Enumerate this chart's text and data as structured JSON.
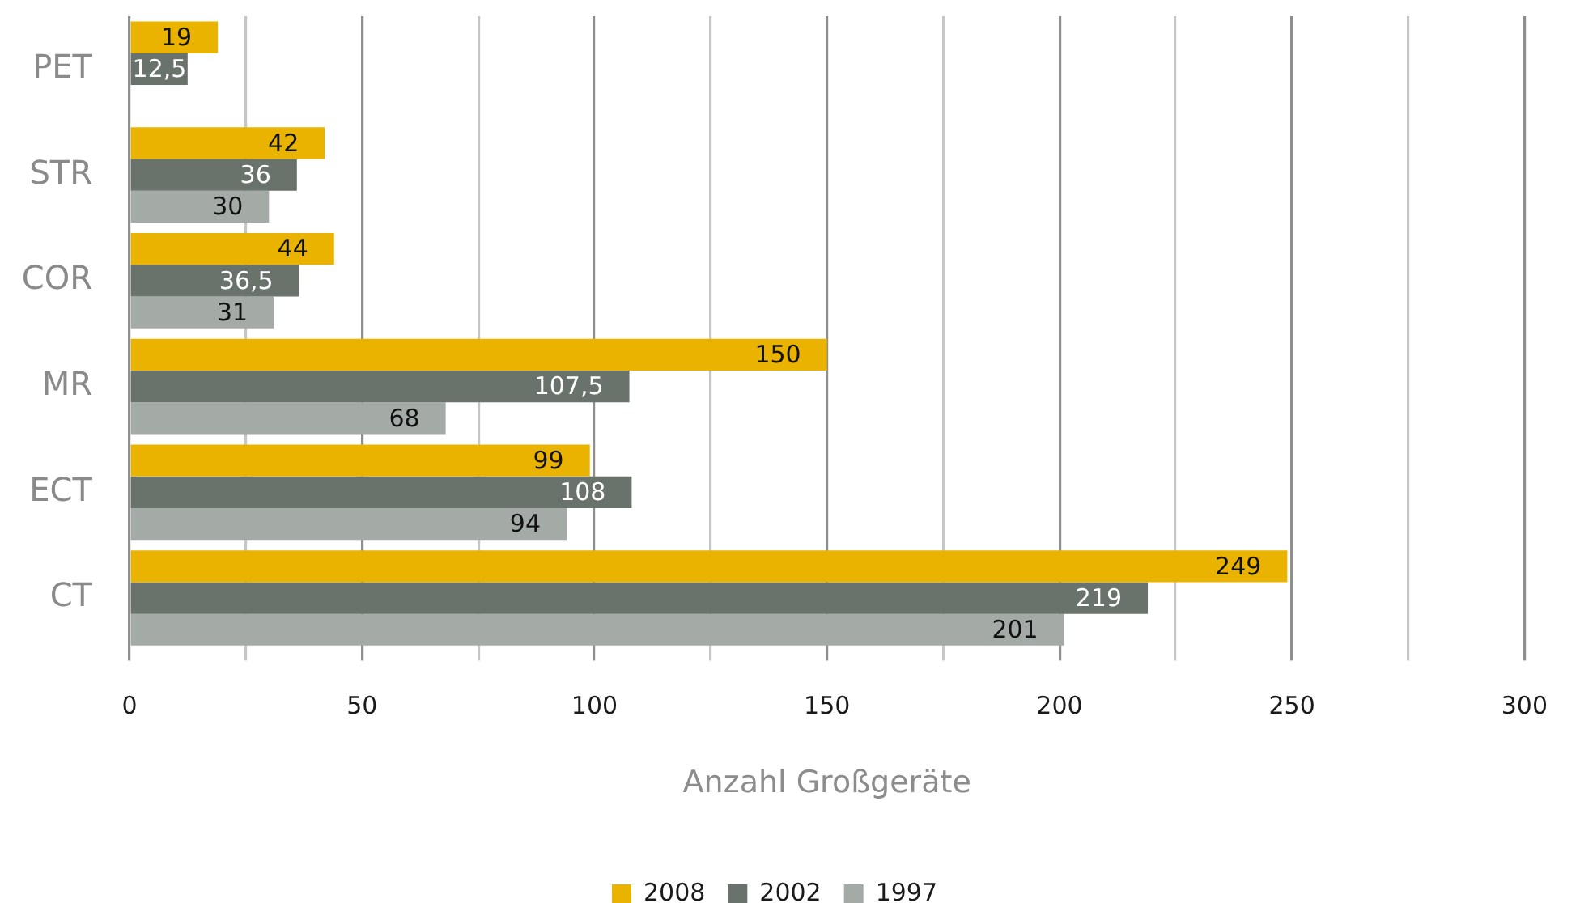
{
  "chart_data": {
    "type": "bar",
    "orientation": "horizontal",
    "categories": [
      "PET",
      "STR",
      "COR",
      "MR",
      "ECT",
      "CT"
    ],
    "series": [
      {
        "name": "2008",
        "color": "#eab300",
        "values": [
          19,
          42,
          44,
          150,
          99,
          249
        ],
        "value_labels": [
          "19",
          "42",
          "44",
          "150",
          "99",
          "249"
        ]
      },
      {
        "name": "2002",
        "color": "#69726b",
        "values": [
          12.5,
          36,
          36.5,
          107.5,
          108,
          219
        ],
        "value_labels": [
          "12,5",
          "36",
          "36,5",
          "107,5",
          "108",
          "219"
        ]
      },
      {
        "name": "1997",
        "color": "#a4aba6",
        "values": [
          null,
          30,
          31,
          68,
          94,
          201
        ],
        "value_labels": [
          null,
          "30",
          "31",
          "68",
          "94",
          "201"
        ]
      }
    ],
    "xlabel": "Anzahl Großgeräte",
    "xlim": [
      0,
      300
    ],
    "xticks": [
      0,
      {
        "value": 25,
        "label": null
      },
      50,
      {
        "value": 75,
        "label": null
      },
      100,
      {
        "value": 125,
        "label": null
      },
      150,
      {
        "value": 175,
        "label": null
      },
      200,
      {
        "value": 225,
        "label": null
      },
      250,
      {
        "value": 275,
        "label": null
      },
      300
    ],
    "grid": "x",
    "legend": "bottom"
  }
}
